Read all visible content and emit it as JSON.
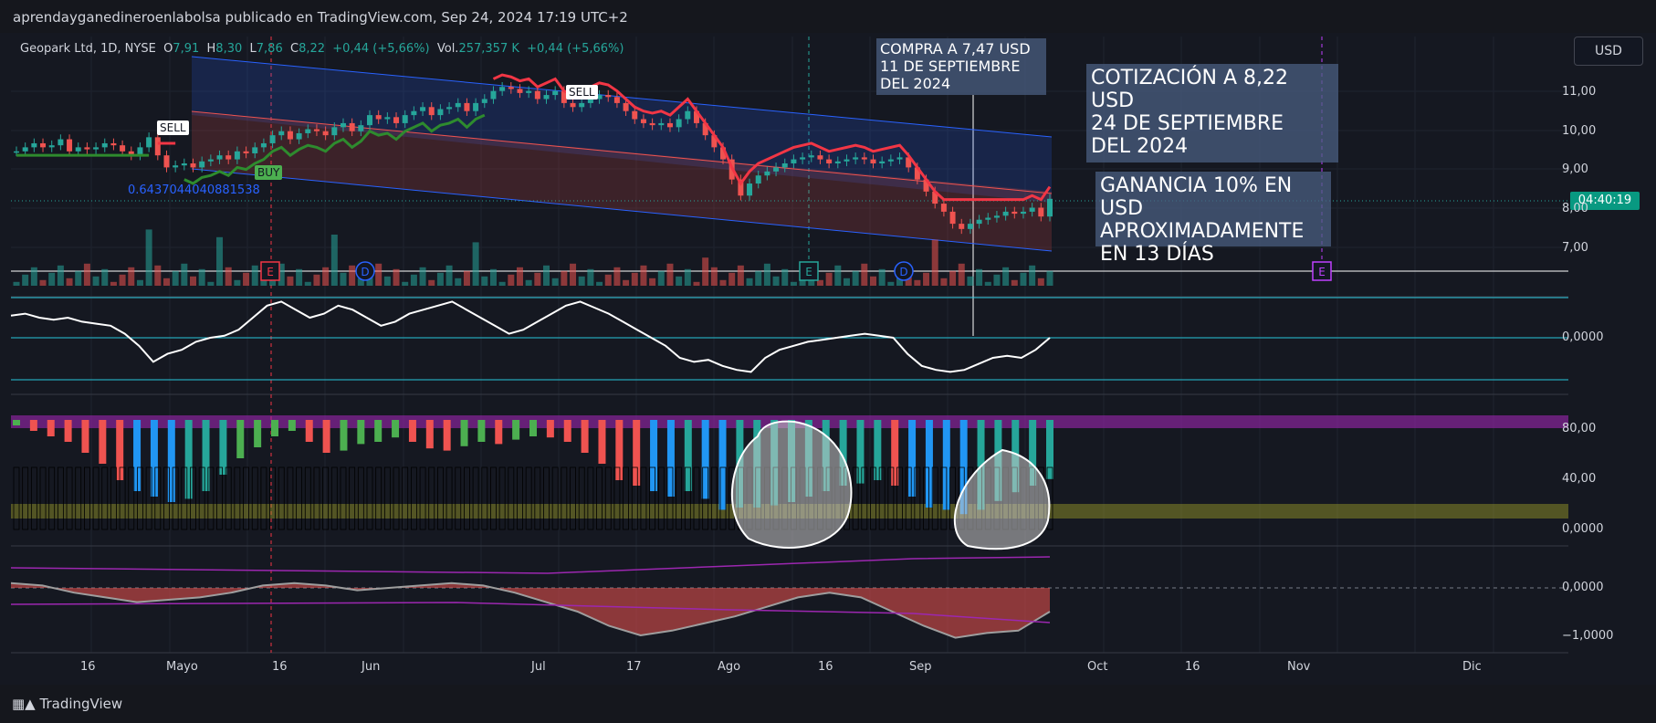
{
  "header": {
    "publisher_line": "aprendayganedineroenlabolsa publicado en TradingView.com, Sep 24, 2024 17:19 UTC+2"
  },
  "legend": {
    "symbol": "Geopark Ltd, 1D, NYSE",
    "open_label": "O",
    "open": "7,91",
    "high_label": "H",
    "high": "8,30",
    "low_label": "L",
    "low": "7,86",
    "close_label": "C",
    "close": "8,22",
    "change": "+0,44 (+5,66%)",
    "vol_label": "Vol.",
    "volume": "257,357 K",
    "vol_change": "+0,44 (+5,66%)"
  },
  "currency_button": "USD",
  "price_tag": "04:40:19",
  "fib_label": "0.6437044040881538",
  "notes": {
    "buy_note": "COMPRA A 7,47 USD\n11 DE SEPTIEMBRE\nDEL 2024",
    "price_note": "COTIZACIÓN A 8,22 USD\n24 DE SEPTIEMBRE\nDEL 2024",
    "gain_note": "GANANCIA 10% EN USD\nAPROXIMADAMENTE\nEN 13 DÍAS"
  },
  "signals": {
    "sell": "SELL",
    "buy": "BUY"
  },
  "event_markers": [
    "E",
    "D",
    "E",
    "D",
    "E"
  ],
  "footer": {
    "brand": "TradingView"
  },
  "colors": {
    "up": "#26a69a",
    "down": "#ef5350",
    "channel": "#2962ff",
    "supertrend_up": "#2e8b2e",
    "supertrend_down": "#f23645",
    "oscillator": "#ffffff"
  },
  "chart_data": {
    "type": "candlestick",
    "title": "Geopark Ltd, 1D, NYSE",
    "x_tick_labels": [
      "16",
      "Mayo",
      "16",
      "Jun",
      "Jul",
      "17",
      "Ago",
      "16",
      "Sep",
      "Oct",
      "16",
      "Nov",
      "Dic"
    ],
    "price_axis": {
      "ticks": [
        "11,00",
        "10,00",
        "9,00",
        "8,00",
        "7,00"
      ],
      "range": [
        6.4,
        11.8
      ]
    },
    "oscillator1_axis": {
      "ticks": [
        "0,0000"
      ]
    },
    "oscillator2_axis": {
      "ticks": [
        "80,00",
        "40,00",
        "0,0000"
      ]
    },
    "oscillator3_axis": {
      "ticks": [
        "0,0000",
        "−1,0000"
      ]
    },
    "close_series": [
      9.4,
      9.5,
      9.6,
      9.5,
      9.55,
      9.7,
      9.4,
      9.5,
      9.45,
      9.5,
      9.6,
      9.55,
      9.4,
      9.3,
      9.5,
      9.75,
      9.3,
      9.0,
      9.05,
      9.1,
      9.0,
      9.15,
      9.2,
      9.3,
      9.2,
      9.4,
      9.35,
      9.5,
      9.6,
      9.8,
      9.9,
      9.7,
      9.85,
      9.95,
      9.9,
      9.8,
      10.0,
      10.1,
      9.9,
      10.05,
      10.3,
      10.2,
      10.25,
      10.1,
      10.3,
      10.4,
      10.5,
      10.3,
      10.45,
      10.5,
      10.6,
      10.4,
      10.6,
      10.7,
      10.9,
      11.0,
      10.95,
      10.85,
      10.9,
      10.7,
      10.8,
      10.9,
      10.6,
      10.5,
      10.6,
      10.7,
      10.8,
      10.75,
      10.6,
      10.4,
      10.2,
      10.1,
      10.05,
      10.1,
      10.0,
      10.2,
      10.4,
      10.1,
      9.8,
      9.5,
      9.2,
      8.7,
      8.3,
      8.6,
      8.8,
      8.9,
      9.0,
      9.1,
      9.2,
      9.25,
      9.3,
      9.2,
      9.1,
      9.15,
      9.2,
      9.25,
      9.2,
      9.1,
      9.15,
      9.2,
      9.25,
      9.0,
      8.7,
      8.4,
      8.1,
      7.9,
      7.6,
      7.47,
      7.6,
      7.7,
      7.75,
      7.8,
      7.9,
      7.85,
      7.9,
      8.0,
      7.78,
      8.22
    ],
    "oscillator1": [
      0.55,
      0.6,
      0.5,
      0.45,
      0.5,
      0.4,
      0.35,
      0.3,
      0.1,
      -0.2,
      -0.6,
      -0.4,
      -0.3,
      -0.1,
      0.0,
      0.05,
      0.2,
      0.5,
      0.8,
      0.9,
      0.7,
      0.5,
      0.6,
      0.8,
      0.7,
      0.5,
      0.3,
      0.4,
      0.6,
      0.7,
      0.8,
      0.9,
      0.7,
      0.5,
      0.3,
      0.1,
      0.2,
      0.4,
      0.6,
      0.8,
      0.9,
      0.75,
      0.6,
      0.4,
      0.2,
      0.0,
      -0.2,
      -0.5,
      -0.6,
      -0.55,
      -0.7,
      -0.8,
      -0.85,
      -0.5,
      -0.3,
      -0.2,
      -0.1,
      -0.05,
      0.0,
      0.05,
      0.1,
      0.05,
      0.0,
      -0.4,
      -0.7,
      -0.8,
      -0.85,
      -0.8,
      -0.65,
      -0.5,
      -0.45,
      -0.5,
      -0.3,
      0.0
    ],
    "oscillator2": [
      95,
      90,
      85,
      80,
      70,
      60,
      45,
      35,
      30,
      25,
      28,
      35,
      50,
      65,
      75,
      85,
      90,
      80,
      70,
      72,
      78,
      80,
      84,
      80,
      74,
      72,
      76,
      80,
      78,
      82,
      85,
      84,
      80,
      70,
      60,
      45,
      40,
      35,
      30,
      35,
      28,
      18,
      20,
      20,
      22,
      25,
      30,
      35,
      40,
      42,
      45,
      40,
      30,
      20,
      18,
      14,
      18,
      26,
      34,
      40,
      46
    ],
    "oscillator3": [
      0.1,
      0.05,
      -0.1,
      -0.2,
      -0.3,
      -0.25,
      -0.2,
      -0.1,
      0.05,
      0.1,
      0.05,
      -0.05,
      0.0,
      0.05,
      0.1,
      0.05,
      -0.1,
      -0.3,
      -0.5,
      -0.8,
      -1.0,
      -0.9,
      -0.75,
      -0.6,
      -0.4,
      -0.2,
      -0.1,
      -0.2,
      -0.5,
      -0.8,
      -1.05,
      -0.95,
      -0.9,
      -0.5
    ]
  }
}
